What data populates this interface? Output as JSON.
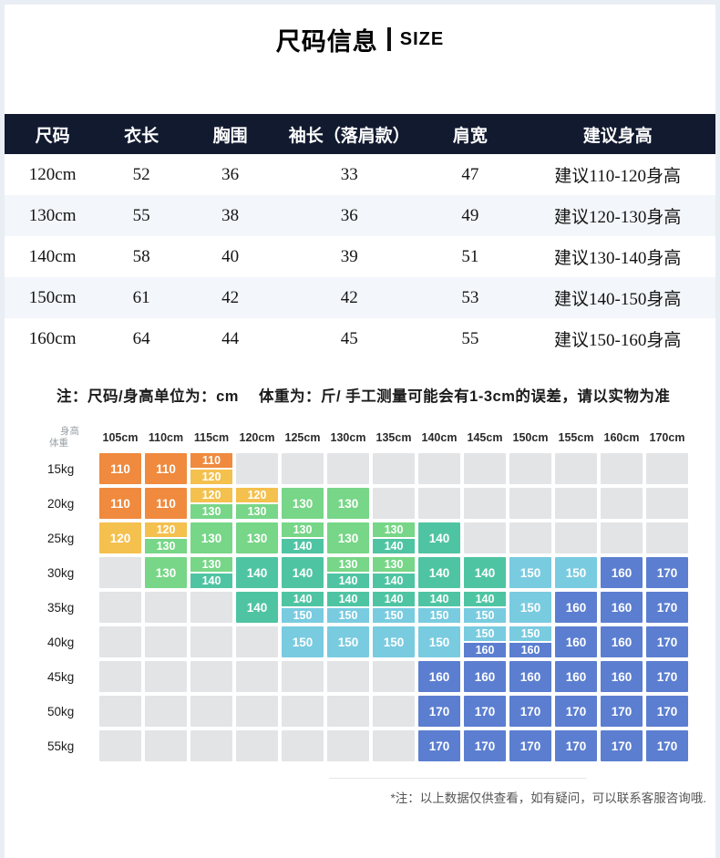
{
  "title": {
    "cn": "尺码信息",
    "en": "SIZE"
  },
  "size_table": {
    "headers": [
      "尺码",
      "衣长",
      "胸围",
      "袖长（落肩款）",
      "肩宽",
      "建议身高"
    ],
    "rows": [
      [
        "120cm",
        "52",
        "36",
        "33",
        "47",
        "建议110-120身高"
      ],
      [
        "130cm",
        "55",
        "38",
        "36",
        "49",
        "建议120-130身高"
      ],
      [
        "140cm",
        "58",
        "40",
        "39",
        "51",
        "建议130-140身高"
      ],
      [
        "150cm",
        "61",
        "42",
        "42",
        "53",
        "建议140-150身高"
      ],
      [
        "160cm",
        "64",
        "44",
        "45",
        "55",
        "建议150-160身高"
      ]
    ]
  },
  "note": "注：尺码/身高单位为：cm　 体重为：斤/ 手工测量可能会有1-3cm的误差，请以实物为准",
  "palette": {
    "orange": "#ef8a3e",
    "amber": "#f4c04e",
    "green": "#77d687",
    "teal": "#4fc4a2",
    "sky": "#79cbe0",
    "indigo": "#5b7ed0",
    "empty_gray": "#e3e4e6",
    "header_navy": "#121a30",
    "alt_row": "#f3f6fa"
  },
  "matrix": {
    "corner": {
      "top": "身高",
      "bottom": "体重"
    },
    "columns": [
      "105cm",
      "110cm",
      "115cm",
      "120cm",
      "125cm",
      "130cm",
      "135cm",
      "140cm",
      "145cm",
      "150cm",
      "155cm",
      "160cm",
      "170cm"
    ],
    "rows": [
      {
        "label": "15kg",
        "cells": [
          {
            "v": "110",
            "c": "orange"
          },
          {
            "v": "110",
            "c": "orange"
          },
          {
            "t": {
              "v": "110",
              "c": "orange"
            },
            "b": {
              "v": "120",
              "c": "amber"
            }
          },
          null,
          null,
          null,
          null,
          null,
          null,
          null,
          null,
          null,
          null
        ]
      },
      {
        "label": "20kg",
        "cells": [
          {
            "v": "110",
            "c": "orange"
          },
          {
            "v": "110",
            "c": "orange"
          },
          {
            "t": {
              "v": "120",
              "c": "amber"
            },
            "b": {
              "v": "130",
              "c": "green"
            }
          },
          {
            "t": {
              "v": "120",
              "c": "amber"
            },
            "b": {
              "v": "130",
              "c": "green"
            }
          },
          {
            "v": "130",
            "c": "green"
          },
          {
            "v": "130",
            "c": "green"
          },
          null,
          null,
          null,
          null,
          null,
          null,
          null
        ]
      },
      {
        "label": "25kg",
        "cells": [
          {
            "v": "120",
            "c": "amber"
          },
          {
            "t": {
              "v": "120",
              "c": "amber"
            },
            "b": {
              "v": "130",
              "c": "green"
            }
          },
          {
            "v": "130",
            "c": "green"
          },
          {
            "v": "130",
            "c": "green"
          },
          {
            "t": {
              "v": "130",
              "c": "green"
            },
            "b": {
              "v": "140",
              "c": "teal"
            }
          },
          {
            "v": "130",
            "c": "green"
          },
          {
            "t": {
              "v": "130",
              "c": "green"
            },
            "b": {
              "v": "140",
              "c": "teal"
            }
          },
          {
            "v": "140",
            "c": "teal"
          },
          null,
          null,
          null,
          null,
          null
        ]
      },
      {
        "label": "30kg",
        "cells": [
          null,
          {
            "v": "130",
            "c": "green"
          },
          {
            "t": {
              "v": "130",
              "c": "green"
            },
            "b": {
              "v": "140",
              "c": "teal"
            }
          },
          {
            "v": "140",
            "c": "teal"
          },
          {
            "v": "140",
            "c": "teal"
          },
          {
            "t": {
              "v": "130",
              "c": "green"
            },
            "b": {
              "v": "140",
              "c": "teal"
            }
          },
          {
            "t": {
              "v": "130",
              "c": "green"
            },
            "b": {
              "v": "140",
              "c": "teal"
            }
          },
          {
            "v": "140",
            "c": "teal"
          },
          {
            "v": "140",
            "c": "teal"
          },
          {
            "v": "150",
            "c": "sky"
          },
          {
            "v": "150",
            "c": "sky"
          },
          {
            "v": "160",
            "c": "indigo"
          },
          {
            "v": "170",
            "c": "indigo"
          }
        ]
      },
      {
        "label": "35kg",
        "cells": [
          null,
          null,
          null,
          {
            "v": "140",
            "c": "teal"
          },
          {
            "t": {
              "v": "140",
              "c": "teal"
            },
            "b": {
              "v": "150",
              "c": "sky"
            }
          },
          {
            "t": {
              "v": "140",
              "c": "teal"
            },
            "b": {
              "v": "150",
              "c": "sky"
            }
          },
          {
            "t": {
              "v": "140",
              "c": "teal"
            },
            "b": {
              "v": "150",
              "c": "sky"
            }
          },
          {
            "t": {
              "v": "140",
              "c": "teal"
            },
            "b": {
              "v": "150",
              "c": "sky"
            }
          },
          {
            "t": {
              "v": "140",
              "c": "teal"
            },
            "b": {
              "v": "150",
              "c": "sky"
            }
          },
          {
            "v": "150",
            "c": "sky"
          },
          {
            "v": "160",
            "c": "indigo"
          },
          {
            "v": "160",
            "c": "indigo"
          },
          {
            "v": "170",
            "c": "indigo"
          }
        ]
      },
      {
        "label": "40kg",
        "cells": [
          null,
          null,
          null,
          null,
          {
            "v": "150",
            "c": "sky"
          },
          {
            "v": "150",
            "c": "sky"
          },
          {
            "v": "150",
            "c": "sky"
          },
          {
            "v": "150",
            "c": "sky"
          },
          {
            "t": {
              "v": "150",
              "c": "sky"
            },
            "b": {
              "v": "160",
              "c": "indigo"
            }
          },
          {
            "t": {
              "v": "150",
              "c": "sky"
            },
            "b": {
              "v": "160",
              "c": "indigo"
            }
          },
          {
            "v": "160",
            "c": "indigo"
          },
          {
            "v": "160",
            "c": "indigo"
          },
          {
            "v": "170",
            "c": "indigo"
          }
        ]
      },
      {
        "label": "45kg",
        "cells": [
          null,
          null,
          null,
          null,
          null,
          null,
          null,
          {
            "v": "160",
            "c": "indigo"
          },
          {
            "v": "160",
            "c": "indigo"
          },
          {
            "v": "160",
            "c": "indigo"
          },
          {
            "v": "160",
            "c": "indigo"
          },
          {
            "v": "160",
            "c": "indigo"
          },
          {
            "v": "170",
            "c": "indigo"
          }
        ]
      },
      {
        "label": "50kg",
        "cells": [
          null,
          null,
          null,
          null,
          null,
          null,
          null,
          {
            "v": "170",
            "c": "indigo"
          },
          {
            "v": "170",
            "c": "indigo"
          },
          {
            "v": "170",
            "c": "indigo"
          },
          {
            "v": "170",
            "c": "indigo"
          },
          {
            "v": "170",
            "c": "indigo"
          },
          {
            "v": "170",
            "c": "indigo"
          }
        ]
      },
      {
        "label": "55kg",
        "cells": [
          null,
          null,
          null,
          null,
          null,
          null,
          null,
          {
            "v": "170",
            "c": "indigo"
          },
          {
            "v": "170",
            "c": "indigo"
          },
          {
            "v": "170",
            "c": "indigo"
          },
          {
            "v": "170",
            "c": "indigo"
          },
          {
            "v": "170",
            "c": "indigo"
          },
          {
            "v": "170",
            "c": "indigo"
          }
        ]
      }
    ]
  },
  "footer_note": "*注：以上数据仅供查看，如有疑问，可以联系客服咨询哦."
}
